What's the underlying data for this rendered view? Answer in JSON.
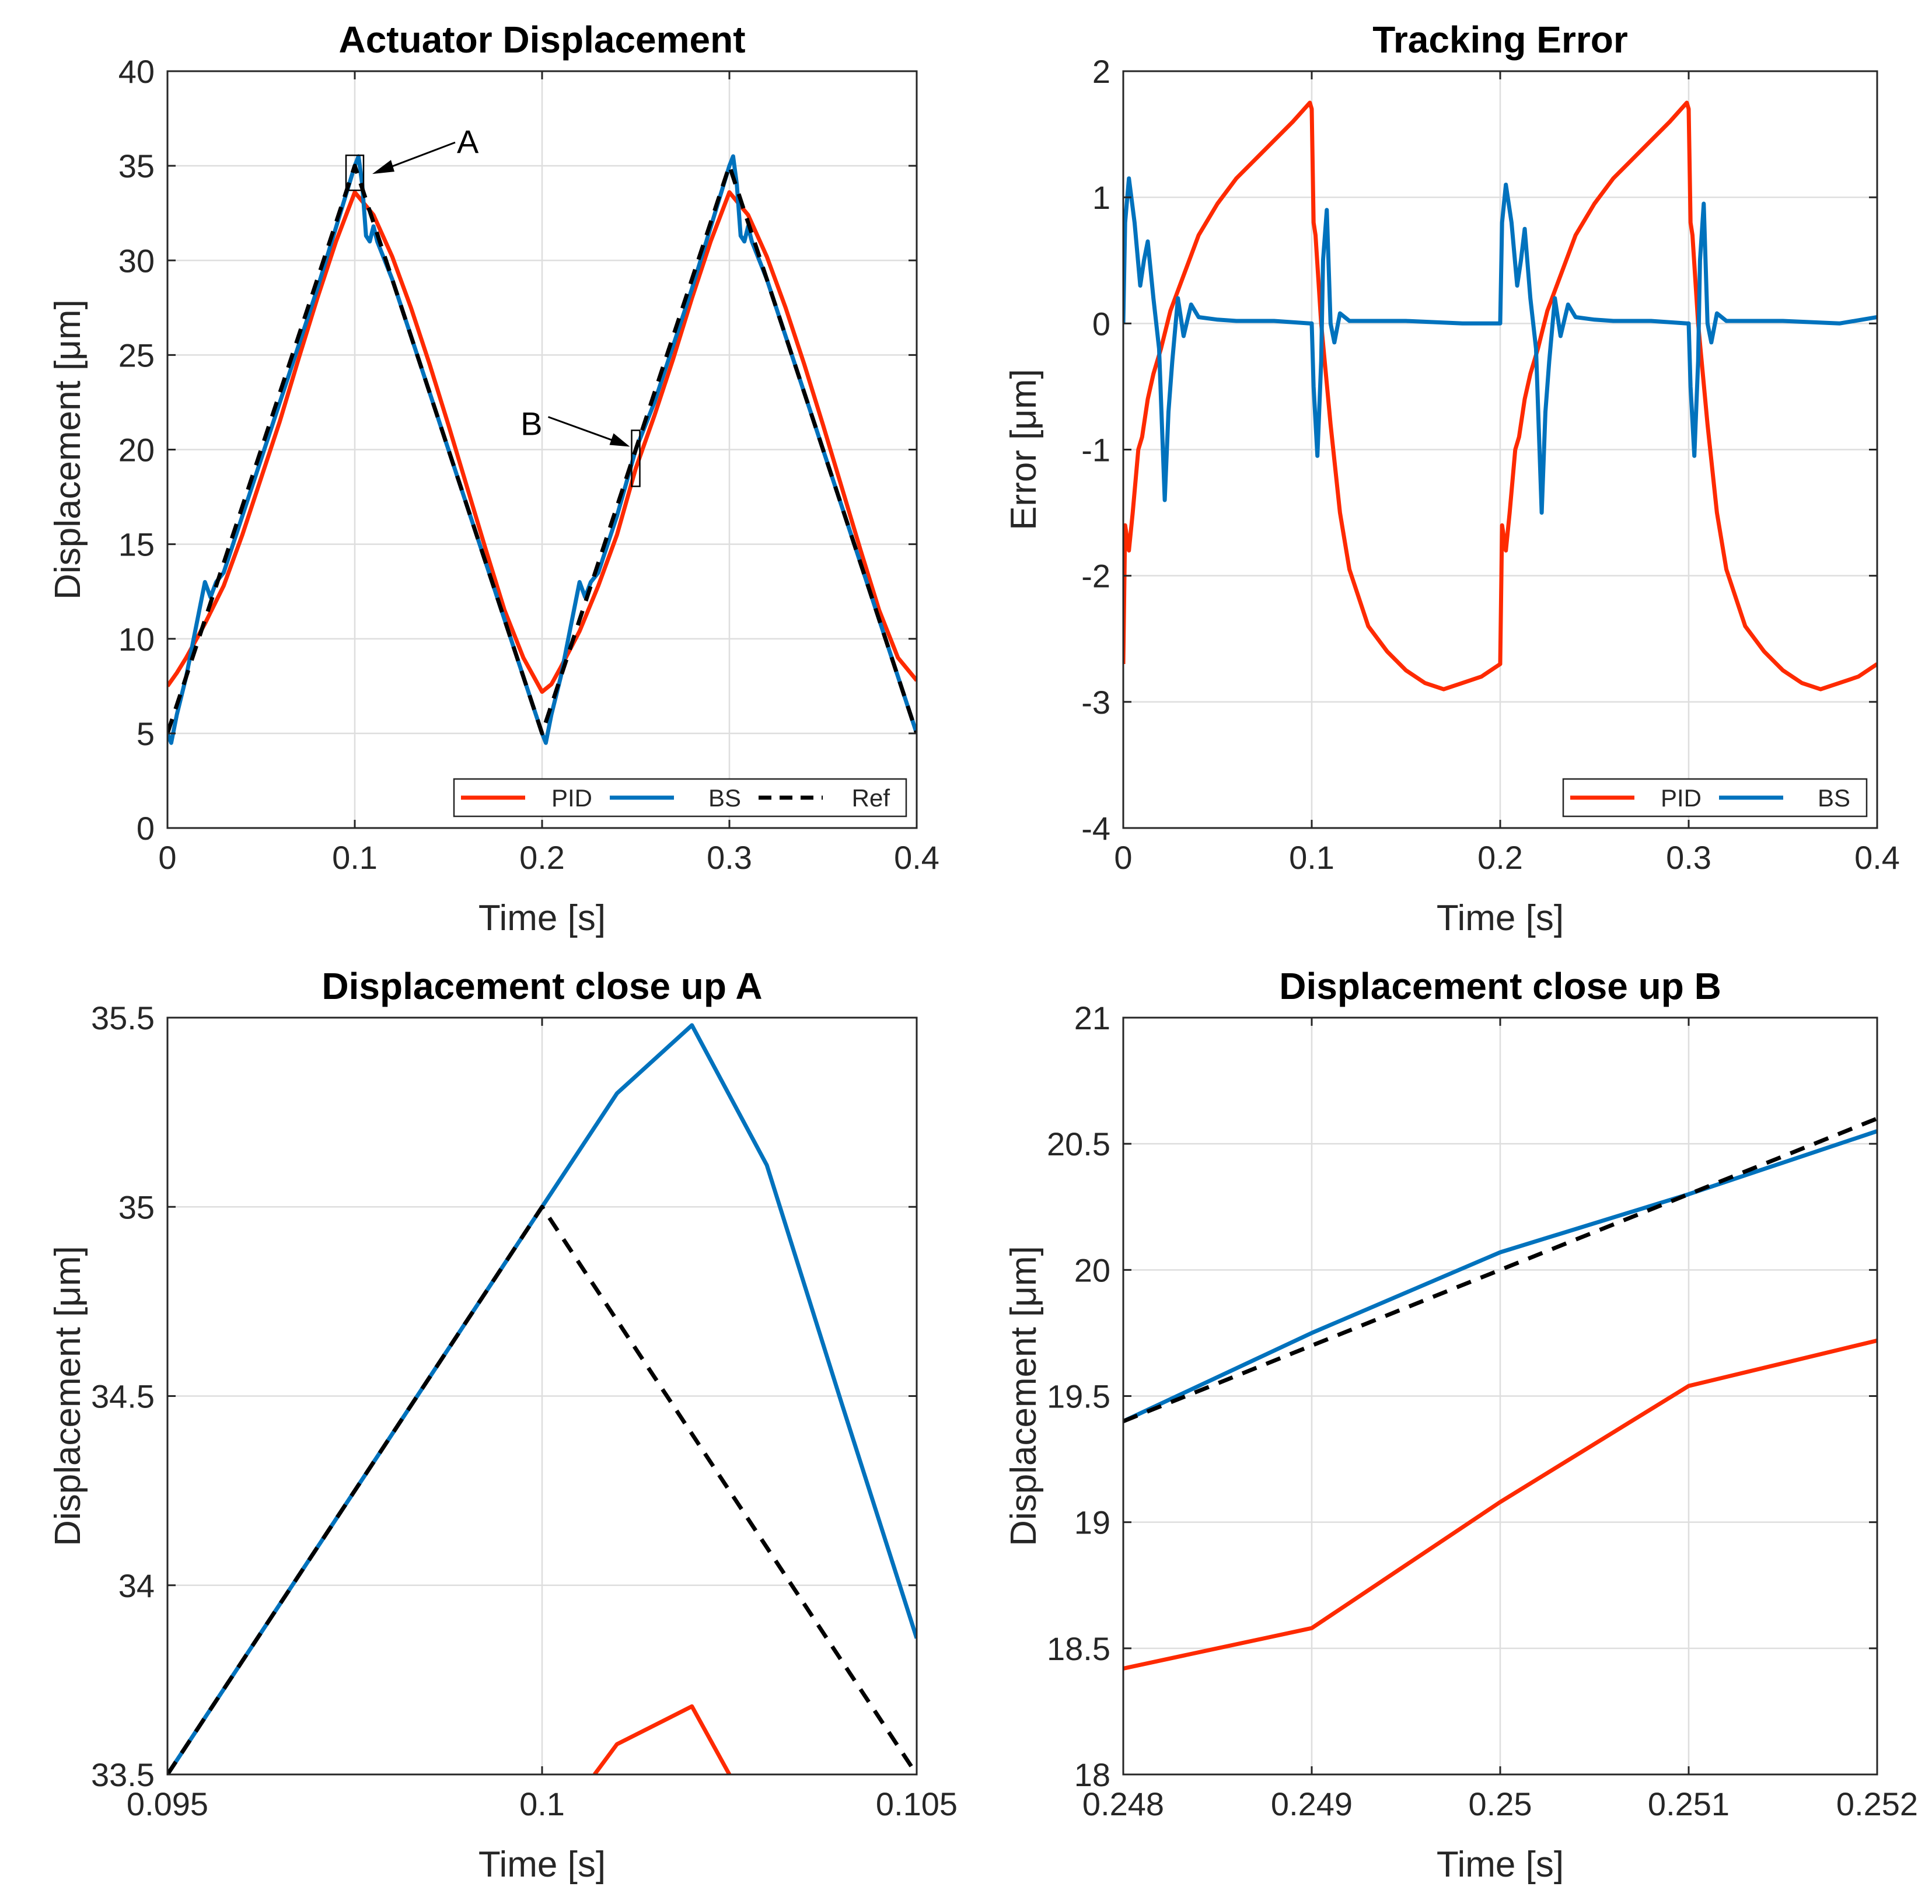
{
  "colors": {
    "pid": "#fe2a00",
    "bs": "#0072bd",
    "ref": "#000000",
    "grid": "#dedede",
    "axis": "#262626"
  },
  "chart_data": [
    {
      "id": "actuator",
      "type": "line",
      "title": "Actuator Displacement",
      "xlabel": "Time [s]",
      "ylabel": "Displacement [μm]",
      "xlim": [
        0,
        0.4
      ],
      "ylim": [
        0,
        40
      ],
      "xticks": [
        0,
        0.1,
        0.2,
        0.3,
        0.4
      ],
      "xtick_labels": [
        "0",
        "0.1",
        "0.2",
        "0.3",
        "0.4"
      ],
      "yticks": [
        0,
        5,
        10,
        15,
        20,
        25,
        30,
        35,
        40
      ],
      "ytick_labels": [
        "0",
        "5",
        "10",
        "15",
        "20",
        "25",
        "30",
        "35",
        "40"
      ],
      "legend": {
        "location": "bottom-right",
        "entries": [
          "PID",
          "BS",
          "Ref"
        ]
      },
      "annotations": [
        {
          "text": "A",
          "point": [
            0.1,
            35
          ]
        },
        {
          "text": "B",
          "point": [
            0.25,
            20
          ]
        }
      ],
      "series": [
        {
          "name": "PID",
          "color": "pid",
          "style": "solid",
          "x": [
            0,
            0.005,
            0.01,
            0.02,
            0.03,
            0.04,
            0.05,
            0.06,
            0.07,
            0.08,
            0.09,
            0.1,
            0.11,
            0.12,
            0.13,
            0.14,
            0.15,
            0.16,
            0.17,
            0.18,
            0.19,
            0.2,
            0.205,
            0.21,
            0.22,
            0.23,
            0.24,
            0.25,
            0.26,
            0.27,
            0.28,
            0.29,
            0.3,
            0.31,
            0.32,
            0.33,
            0.34,
            0.35,
            0.36,
            0.37,
            0.38,
            0.39,
            0.4
          ],
          "y": [
            7.5,
            8.2,
            9.0,
            10.8,
            12.8,
            15.5,
            18.5,
            21.5,
            24.8,
            28.0,
            31.0,
            33.6,
            32.4,
            30.2,
            27.5,
            24.5,
            21.3,
            18.0,
            14.7,
            11.5,
            9.0,
            7.2,
            7.6,
            8.5,
            10.4,
            12.8,
            15.5,
            19.0,
            21.8,
            24.8,
            28.0,
            31.0,
            33.6,
            32.4,
            30.2,
            27.5,
            24.5,
            21.3,
            18.0,
            14.7,
            11.5,
            9.0,
            7.8
          ]
        },
        {
          "name": "BS",
          "color": "bs",
          "style": "solid",
          "x": [
            0,
            0.002,
            0.005,
            0.01,
            0.015,
            0.02,
            0.023,
            0.026,
            0.03,
            0.04,
            0.06,
            0.08,
            0.1,
            0.102,
            0.104,
            0.106,
            0.108,
            0.11,
            0.112,
            0.12,
            0.14,
            0.16,
            0.18,
            0.2,
            0.202,
            0.205,
            0.21,
            0.215,
            0.22,
            0.223,
            0.226,
            0.23,
            0.24,
            0.25,
            0.26,
            0.28,
            0.3,
            0.302,
            0.304,
            0.306,
            0.308,
            0.31,
            0.312,
            0.32,
            0.34,
            0.36,
            0.38,
            0.4
          ],
          "y": [
            5.0,
            4.5,
            6.0,
            8.0,
            10.5,
            13.0,
            12.2,
            13.0,
            13.5,
            16.5,
            22.5,
            28.5,
            35.0,
            35.5,
            34.0,
            31.3,
            31.0,
            31.8,
            31.0,
            29.0,
            23.0,
            17.0,
            11.0,
            5.0,
            4.5,
            6.0,
            8.0,
            10.5,
            13.0,
            12.2,
            13.0,
            13.5,
            16.5,
            20.0,
            22.5,
            28.5,
            35.0,
            35.5,
            34.0,
            31.3,
            31.0,
            31.8,
            31.0,
            29.0,
            23.0,
            17.0,
            11.0,
            5.0
          ]
        },
        {
          "name": "Ref",
          "color": "ref",
          "style": "dashed",
          "x": [
            0,
            0.1,
            0.2,
            0.3,
            0.4
          ],
          "y": [
            5,
            35,
            5,
            35,
            5
          ]
        }
      ]
    },
    {
      "id": "error",
      "type": "line",
      "title": "Tracking Error",
      "xlabel": "Time [s]",
      "ylabel": "Error [μm]",
      "xlim": [
        0,
        0.4
      ],
      "ylim": [
        -4,
        2
      ],
      "xticks": [
        0,
        0.1,
        0.2,
        0.3,
        0.4
      ],
      "xtick_labels": [
        "0",
        "0.1",
        "0.2",
        "0.3",
        "0.4"
      ],
      "yticks": [
        -4,
        -3,
        -2,
        -1,
        0,
        1,
        2
      ],
      "ytick_labels": [
        "-4",
        "-3",
        "-2",
        "-1",
        "0",
        "1",
        "2"
      ],
      "legend": {
        "location": "bottom-right",
        "entries": [
          "PID",
          "BS"
        ]
      },
      "series": [
        {
          "name": "PID",
          "color": "pid",
          "style": "solid",
          "x": [
            0,
            0.001,
            0.003,
            0.005,
            0.008,
            0.01,
            0.013,
            0.016,
            0.02,
            0.025,
            0.03,
            0.04,
            0.05,
            0.06,
            0.07,
            0.08,
            0.09,
            0.099,
            0.1,
            0.101,
            0.102,
            0.105,
            0.11,
            0.115,
            0.12,
            0.13,
            0.14,
            0.15,
            0.16,
            0.17,
            0.18,
            0.19,
            0.2,
            0.201,
            0.203,
            0.205,
            0.208,
            0.21,
            0.213,
            0.216,
            0.22,
            0.225,
            0.23,
            0.24,
            0.25,
            0.26,
            0.27,
            0.28,
            0.29,
            0.299,
            0.3,
            0.301,
            0.302,
            0.305,
            0.31,
            0.315,
            0.32,
            0.33,
            0.34,
            0.35,
            0.36,
            0.37,
            0.38,
            0.39,
            0.4
          ],
          "y": [
            -2.7,
            -1.6,
            -1.8,
            -1.5,
            -1.0,
            -0.9,
            -0.6,
            -0.4,
            -0.2,
            0.1,
            0.3,
            0.7,
            0.95,
            1.15,
            1.3,
            1.45,
            1.6,
            1.75,
            1.7,
            0.8,
            0.7,
            0.0,
            -0.8,
            -1.5,
            -1.95,
            -2.4,
            -2.6,
            -2.75,
            -2.85,
            -2.9,
            -2.85,
            -2.8,
            -2.7,
            -1.6,
            -1.8,
            -1.5,
            -1.0,
            -0.9,
            -0.6,
            -0.4,
            -0.2,
            0.1,
            0.3,
            0.7,
            0.95,
            1.15,
            1.3,
            1.45,
            1.6,
            1.75,
            1.7,
            0.8,
            0.7,
            0.0,
            -0.8,
            -1.5,
            -1.95,
            -2.4,
            -2.6,
            -2.75,
            -2.85,
            -2.9,
            -2.85,
            -2.8,
            -2.7
          ]
        },
        {
          "name": "BS",
          "color": "bs",
          "style": "solid",
          "x": [
            0,
            0.001,
            0.003,
            0.006,
            0.009,
            0.011,
            0.013,
            0.016,
            0.019,
            0.022,
            0.024,
            0.026,
            0.029,
            0.032,
            0.036,
            0.04,
            0.05,
            0.06,
            0.08,
            0.099,
            0.1,
            0.101,
            0.103,
            0.105,
            0.106,
            0.108,
            0.11,
            0.112,
            0.115,
            0.12,
            0.13,
            0.15,
            0.18,
            0.199,
            0.2,
            0.201,
            0.203,
            0.206,
            0.209,
            0.211,
            0.213,
            0.216,
            0.219,
            0.222,
            0.224,
            0.226,
            0.229,
            0.232,
            0.236,
            0.24,
            0.25,
            0.26,
            0.28,
            0.299,
            0.3,
            0.301,
            0.303,
            0.305,
            0.306,
            0.308,
            0.31,
            0.312,
            0.315,
            0.32,
            0.33,
            0.35,
            0.38,
            0.4
          ],
          "y": [
            0,
            0.8,
            1.15,
            0.8,
            0.3,
            0.5,
            0.65,
            0.2,
            -0.2,
            -1.4,
            -0.7,
            -0.3,
            0.2,
            -0.1,
            0.15,
            0.05,
            0.03,
            0.02,
            0.02,
            0.0,
            0.0,
            -0.5,
            -1.05,
            -0.3,
            0.5,
            0.9,
            0.0,
            -0.15,
            0.08,
            0.02,
            0.02,
            0.02,
            0.0,
            0.0,
            0.0,
            0.8,
            1.1,
            0.8,
            0.3,
            0.5,
            0.75,
            0.2,
            -0.2,
            -1.5,
            -0.7,
            -0.3,
            0.2,
            -0.1,
            0.15,
            0.05,
            0.03,
            0.02,
            0.02,
            0.0,
            0.0,
            -0.5,
            -1.05,
            -0.3,
            0.5,
            0.95,
            0.0,
            -0.15,
            0.08,
            0.02,
            0.02,
            0.02,
            0.0,
            0.05
          ]
        }
      ]
    },
    {
      "id": "closeupA",
      "type": "line",
      "title": "Displacement close up A",
      "xlabel": "Time [s]",
      "ylabel": "Displacement [μm]",
      "xlim": [
        0.095,
        0.105
      ],
      "ylim": [
        33.5,
        35.5
      ],
      "xticks": [
        0.095,
        0.1,
        0.105
      ],
      "xtick_labels": [
        "0.095",
        "0.1",
        "0.105"
      ],
      "yticks": [
        33.5,
        34,
        34.5,
        35,
        35.5
      ],
      "ytick_labels": [
        "33.5",
        "34",
        "34.5",
        "35",
        "35.5"
      ],
      "series": [
        {
          "name": "PID",
          "color": "pid",
          "style": "solid",
          "x": [
            0.1007,
            0.101,
            0.102,
            0.1025
          ],
          "y": [
            33.5,
            33.58,
            33.68,
            33.5
          ]
        },
        {
          "name": "BS",
          "color": "bs",
          "style": "solid",
          "x": [
            0.095,
            0.096,
            0.097,
            0.098,
            0.099,
            0.1,
            0.101,
            0.102,
            0.103,
            0.104,
            0.105
          ],
          "y": [
            33.5,
            33.8,
            34.1,
            34.4,
            34.7,
            35.0,
            35.3,
            35.48,
            35.11,
            34.48,
            33.86
          ]
        },
        {
          "name": "Ref",
          "color": "ref",
          "style": "dashed",
          "x": [
            0.095,
            0.1,
            0.105
          ],
          "y": [
            33.5,
            35.0,
            33.5
          ]
        }
      ]
    },
    {
      "id": "closeupB",
      "type": "line",
      "title": "Displacement close up B",
      "xlabel": "Time [s]",
      "ylabel": "Displacement [μm]",
      "xlim": [
        0.248,
        0.252
      ],
      "ylim": [
        18,
        21
      ],
      "xticks": [
        0.248,
        0.249,
        0.25,
        0.251,
        0.252
      ],
      "xtick_labels": [
        "0.248",
        "0.249",
        "0.25",
        "0.251",
        "0.252"
      ],
      "yticks": [
        18,
        18.5,
        19,
        19.5,
        20,
        20.5,
        21
      ],
      "ytick_labels": [
        "18",
        "18.5",
        "19",
        "19.5",
        "20",
        "20.5",
        "21"
      ],
      "series": [
        {
          "name": "PID",
          "color": "pid",
          "style": "solid",
          "x": [
            0.248,
            0.249,
            0.25,
            0.251,
            0.252
          ],
          "y": [
            18.42,
            18.58,
            19.08,
            19.54,
            19.72
          ]
        },
        {
          "name": "BS",
          "color": "bs",
          "style": "solid",
          "x": [
            0.248,
            0.249,
            0.25,
            0.251,
            0.252
          ],
          "y": [
            19.4,
            19.75,
            20.07,
            20.3,
            20.55
          ]
        },
        {
          "name": "Ref",
          "color": "ref",
          "style": "dashed",
          "x": [
            0.248,
            0.252
          ],
          "y": [
            19.4,
            20.6
          ]
        }
      ]
    }
  ]
}
